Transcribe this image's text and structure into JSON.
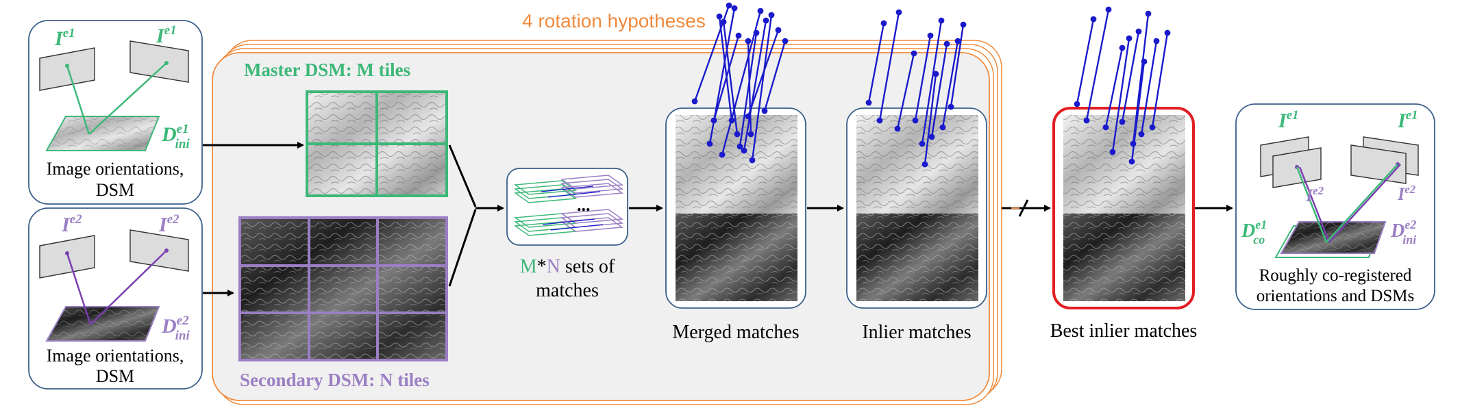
{
  "header": {
    "hypotheses": "4 rotation hypotheses"
  },
  "inputs": {
    "epoch1": {
      "img_left": "I",
      "img_left_sup": "e1",
      "img_right": "I",
      "img_right_sup": "e1",
      "dsm": "D",
      "dsm_sup": "e1",
      "dsm_sub": "ini",
      "caption_line1": "Image orientations,",
      "caption_line2": "DSM"
    },
    "epoch2": {
      "img_left": "I",
      "img_left_sup": "e2",
      "img_right": "I",
      "img_right_sup": "e2",
      "dsm": "D",
      "dsm_sup": "e2",
      "dsm_sub": "ini",
      "caption_line1": "Image orientations,",
      "caption_line2": "DSM"
    }
  },
  "tiling": {
    "master_title": "Master DSM: M tiles",
    "secondary_title": "Secondary DSM: N tiles"
  },
  "match_sets": {
    "ellipsis": "...",
    "label_m": "M",
    "label_star": "*",
    "label_n": "N",
    "label_rest": " sets of",
    "label_line2": "matches"
  },
  "stages": {
    "merged": "Merged matches",
    "inlier": "Inlier matches",
    "best": "Best inlier matches"
  },
  "output": {
    "img_left": "I",
    "img_left_sup": "e1",
    "img_right": "I",
    "img_right_sup": "e1",
    "img_left2": "I",
    "img_left2_sup": "e2",
    "img_right2": "I",
    "img_right2_sup": "e2",
    "dsm_co": "D",
    "dsm_co_sup": "e1",
    "dsm_co_sub": "co",
    "dsm_ini": "D",
    "dsm_ini_sup": "e2",
    "dsm_ini_sub": "ini",
    "caption_line1": "Roughly co-registered",
    "caption_line2": "orientations and DSMs"
  },
  "colors": {
    "green": "#3cb878",
    "purple": "#9b7fc4",
    "orange": "#f08a3c",
    "blue_line": "#1a1acc",
    "best_frame": "#e31e24",
    "box_border": "#3a5f8a"
  }
}
